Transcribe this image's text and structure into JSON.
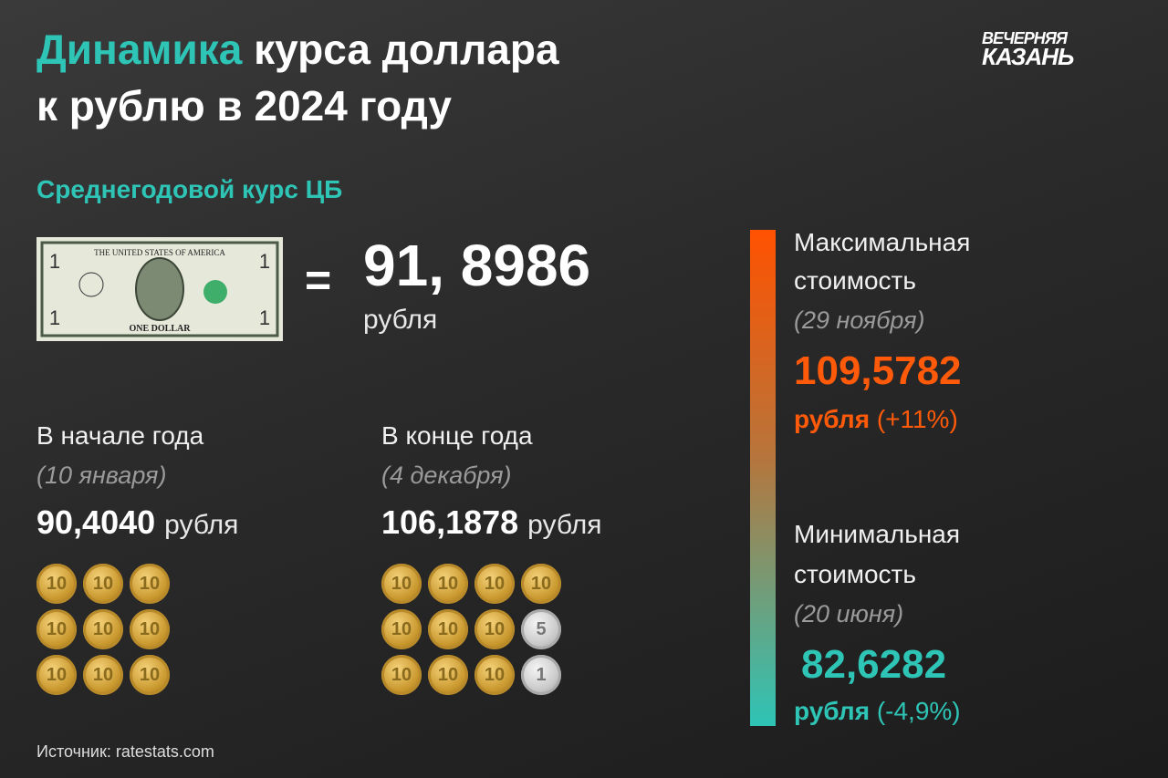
{
  "header": {
    "title_accent": "Динамика",
    "title_line1": "курса доллара",
    "title_line2": "к рублю в 2024 году",
    "logo_line1": "ВЕЧЕРНЯЯ",
    "logo_line2": "КАЗАНЬ"
  },
  "average": {
    "label": "Среднегодовой курс ЦБ",
    "equals": "=",
    "value": "91, 8986",
    "unit": "рубля"
  },
  "bill": {
    "top": "THE UNITED STATES OF AMERICA",
    "bottom": "ONE DOLLAR",
    "denomination": "1"
  },
  "start": {
    "label": "В начале года",
    "date": "(10 января)",
    "value": "90,4040",
    "unit": "рубля",
    "coins": [
      "10",
      "10",
      "10",
      "10",
      "10",
      "10",
      "10",
      "10",
      "10"
    ]
  },
  "end": {
    "label": "В конце года",
    "date": "(4 декабря)",
    "value": "106,1878",
    "unit": "рубля",
    "coins": [
      "10",
      "10",
      "10",
      "10",
      "10",
      "10",
      "10",
      "5",
      "10",
      "10",
      "10",
      "1"
    ]
  },
  "max": {
    "label_line1": "Максимальная",
    "label_line2": "стоимость",
    "date": "(29 ноября)",
    "value": "109,5782",
    "unit": "рубля",
    "change": "(+11%)"
  },
  "min": {
    "label_line1": "Минимальная",
    "label_line2": "стоимость",
    "date": "(20 июня)",
    "value": "82,6282",
    "unit": "рубля",
    "change": "(-4,9%)"
  },
  "footer": {
    "source": "Источник: ratestats.com"
  }
}
